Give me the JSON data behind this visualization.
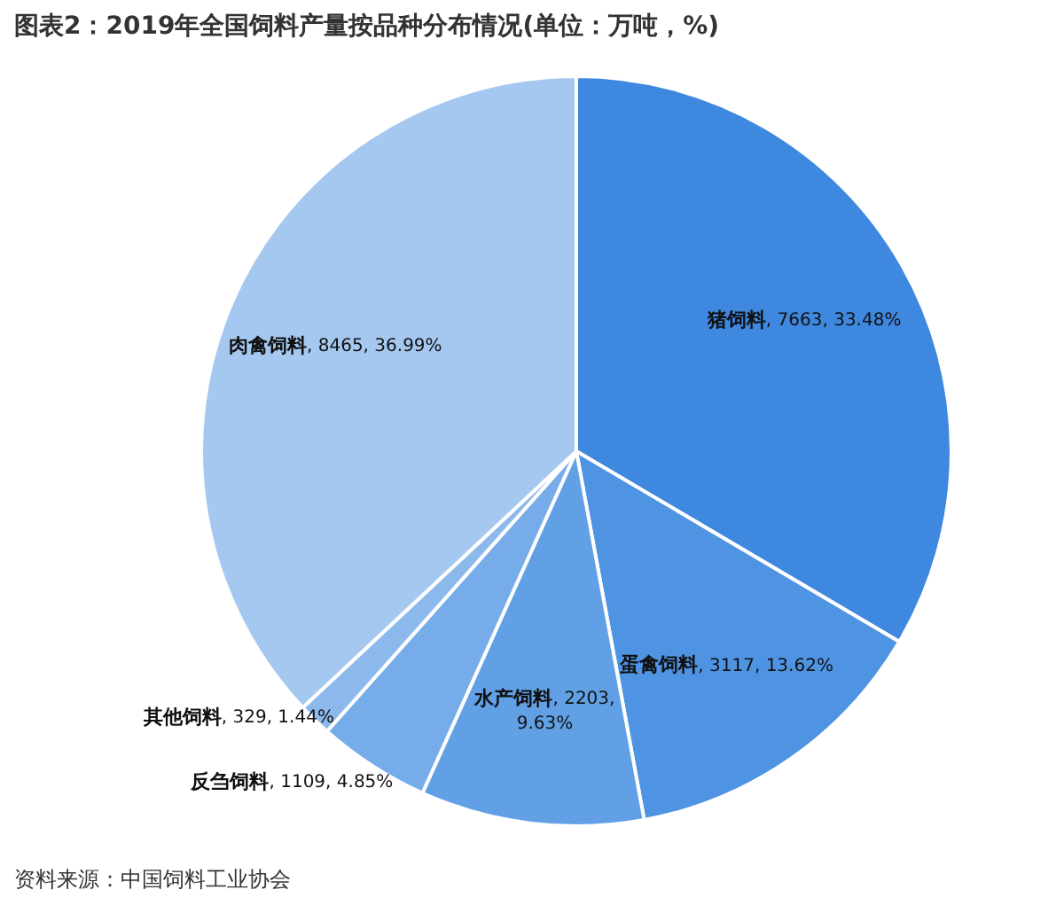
{
  "chart_data": {
    "type": "pie",
    "title": "图表2：2019年全国饲料产量按品种分布情况(单位：万吨，%)",
    "categories": [
      "猪饲料",
      "蛋禽饲料",
      "水产饲料",
      "反刍饲料",
      "其他饲料",
      "肉禽饲料"
    ],
    "values": [
      7663,
      3117,
      2203,
      1109,
      329,
      8465
    ],
    "value_labels": [
      ", 7663, 33.48%",
      ", 3117, 13.62%",
      ", 2203, 9.63%",
      ", 1109, 4.85%",
      ", 329, 1.44%",
      ", 8465, 36.99%"
    ],
    "colors": [
      "#3f88e0",
      "#4f93e3",
      "#62a0e6",
      "#76ace9",
      "#8cb9ec",
      "#a5c8f0"
    ],
    "legend": false,
    "annotations": [
      "资料来源：中国饲料工业协会"
    ]
  }
}
